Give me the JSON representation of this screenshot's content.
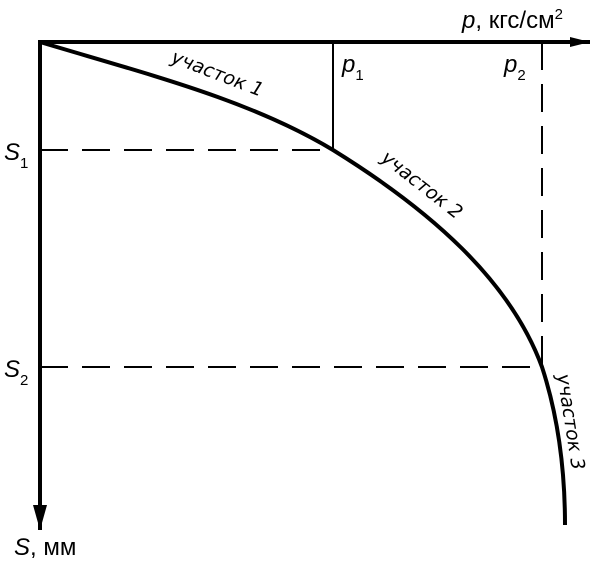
{
  "axes": {
    "p": {
      "symbol": "p",
      "unit": ", кгс/см",
      "power": "2"
    },
    "s": {
      "symbol": "S",
      "unit": ", мм"
    }
  },
  "pressure_marks": [
    {
      "symbol": "p",
      "index": "1"
    },
    {
      "symbol": "p",
      "index": "2"
    }
  ],
  "settlement_marks": [
    {
      "symbol": "S",
      "index": "1"
    },
    {
      "symbol": "S",
      "index": "2"
    }
  ],
  "sections": [
    "участок 1",
    "участок 2",
    "участок 3"
  ]
}
